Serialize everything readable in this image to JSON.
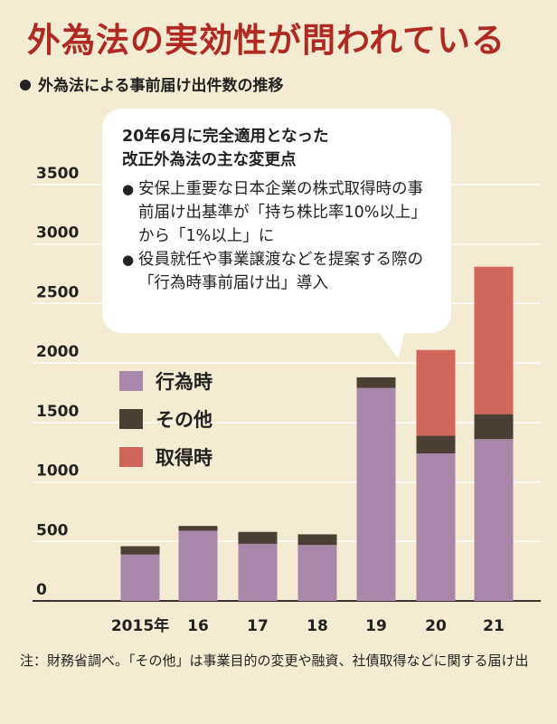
{
  "title": "外為法の実効性が問われている",
  "subtitle": "外為法による事前届け出件数の推移",
  "colors": {
    "background": "#f3ecd3",
    "title": "#b02a22",
    "koui": "#a888a8",
    "other": "#4a3f34",
    "shutoku": "#d0665a",
    "grid": "#ffffff"
  },
  "callout": {
    "heading_line1": "20年6月に完全適用となった",
    "heading_line2": "改正外為法の主な変更点",
    "bullet": "●",
    "item1": "安保上重要な日本企業の株式取得時の事前届け出基準が「持ち株比率10%以上」から「1%以上」に",
    "item2": "役員就任や事業譲渡などを提案する際の「行為時事前届け出」導入"
  },
  "note": "注：財務省調べ。「その他」は事業目的の変更や融資、社債取得などに関する届け出",
  "chart_data": {
    "type": "bar",
    "stacked": true,
    "categories": [
      "2015年",
      "16",
      "17",
      "18",
      "19",
      "20",
      "21"
    ],
    "series": [
      {
        "name": "行為時",
        "color": "#a888a8",
        "values": [
          390,
          590,
          480,
          470,
          1790,
          1240,
          1360
        ]
      },
      {
        "name": "その他",
        "color": "#4a3f34",
        "values": [
          70,
          40,
          100,
          90,
          90,
          150,
          210
        ]
      },
      {
        "name": "取得時",
        "color": "#d0665a",
        "values": [
          0,
          0,
          0,
          0,
          0,
          720,
          1240
        ]
      }
    ],
    "yticks": [
      0,
      500,
      1000,
      1500,
      2000,
      2500,
      3000,
      3500
    ],
    "ylim": [
      0,
      3500
    ],
    "grid": true,
    "legend_position": "left-middle"
  }
}
